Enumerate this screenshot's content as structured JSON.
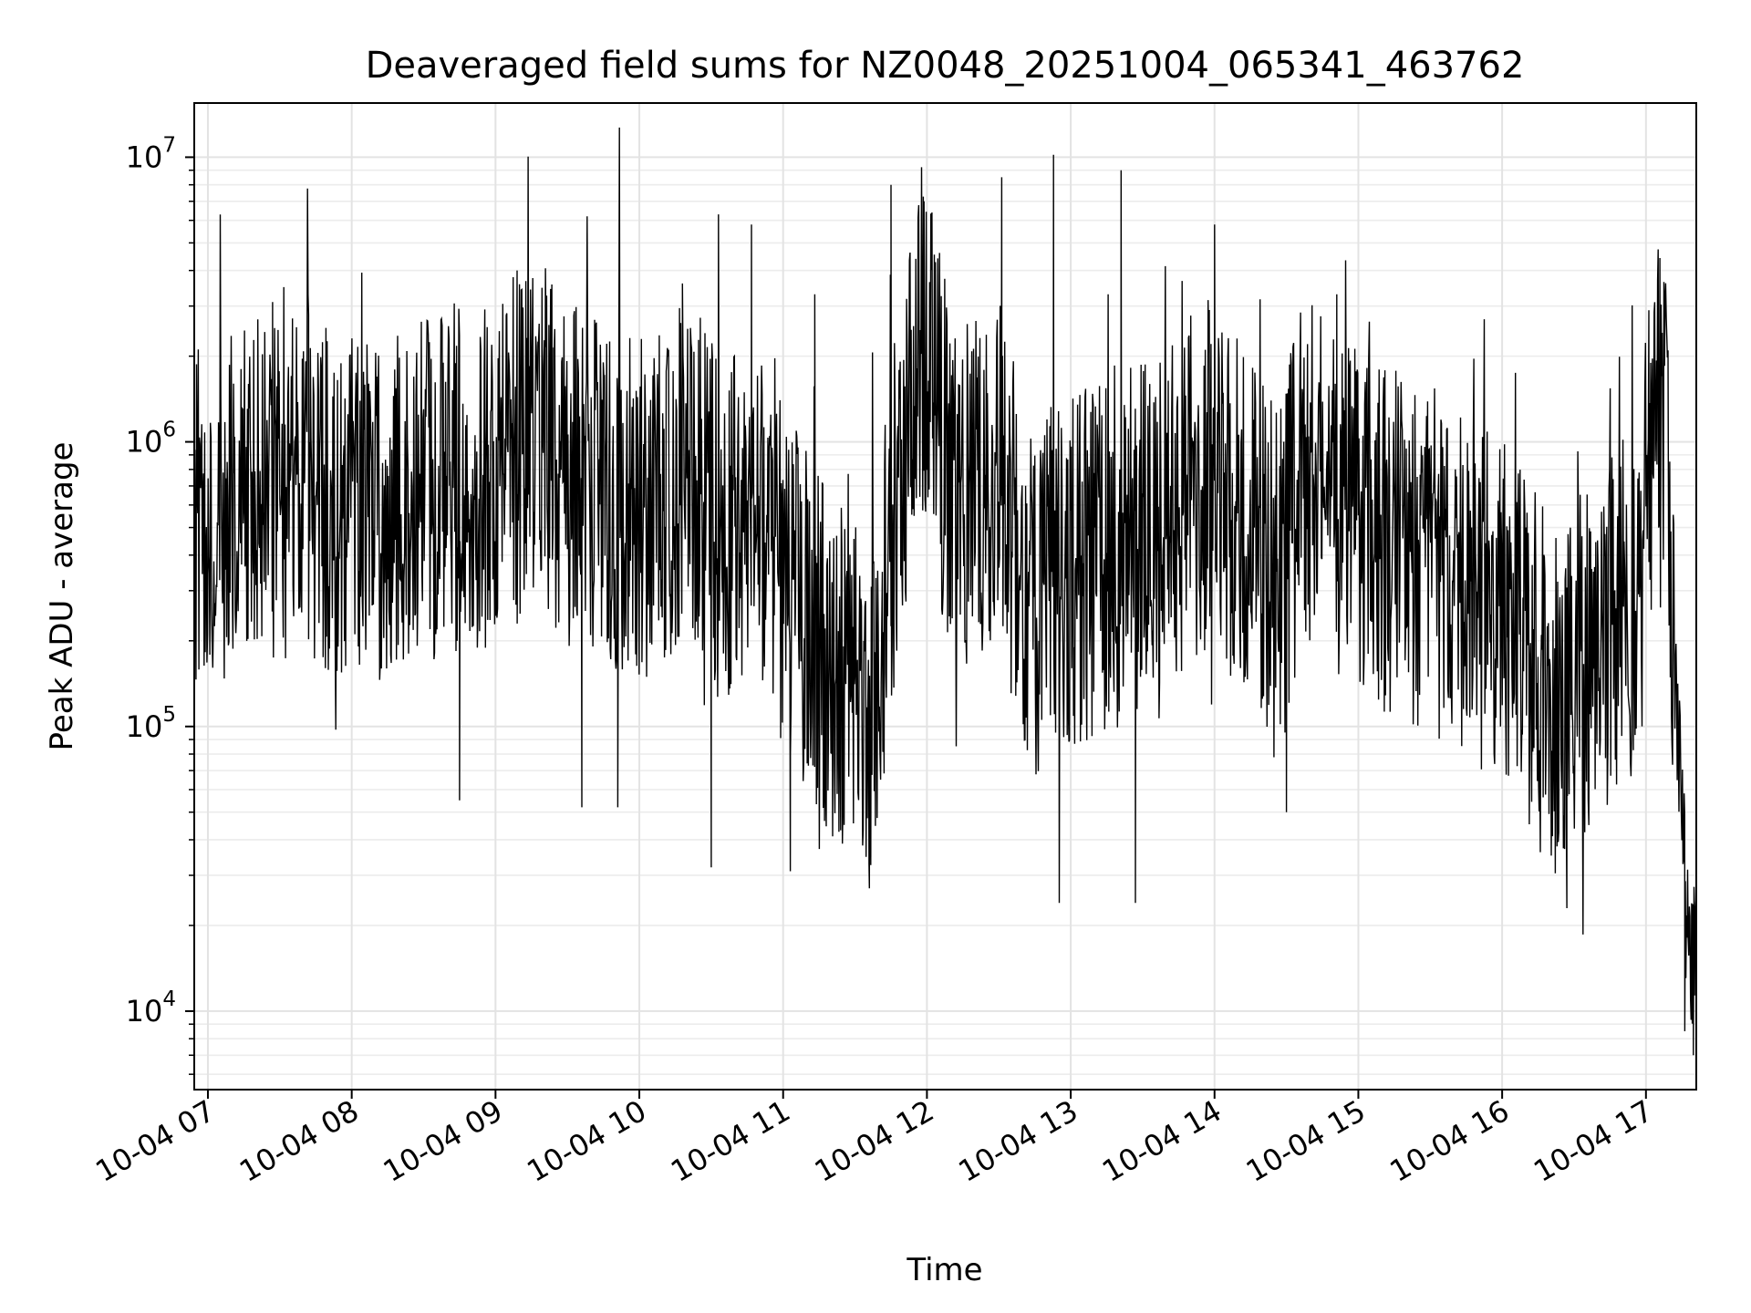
{
  "chart_data": {
    "type": "line",
    "title": "Deaveraged field sums for NZ0048_20251004_065341_463762",
    "xlabel": "Time",
    "ylabel": "Peak ADU - average",
    "yscale": "log",
    "ylim": [
      5300,
      15500000
    ],
    "xlim_hours": [
      6.905,
      17.35
    ],
    "grid": true,
    "x_ticks": [
      {
        "hour": 7,
        "label": "10-04 07"
      },
      {
        "hour": 8,
        "label": "10-04 08"
      },
      {
        "hour": 9,
        "label": "10-04 09"
      },
      {
        "hour": 10,
        "label": "10-04 10"
      },
      {
        "hour": 11,
        "label": "10-04 11"
      },
      {
        "hour": 12,
        "label": "10-04 12"
      },
      {
        "hour": 13,
        "label": "10-04 13"
      },
      {
        "hour": 14,
        "label": "10-04 14"
      },
      {
        "hour": 15,
        "label": "10-04 15"
      },
      {
        "hour": 16,
        "label": "10-04 16"
      },
      {
        "hour": 17,
        "label": "10-04 17"
      }
    ],
    "y_ticks": [
      {
        "value": 10000,
        "base": "10",
        "exp": "4"
      },
      {
        "value": 100000,
        "base": "10",
        "exp": "5"
      },
      {
        "value": 1000000,
        "base": "10",
        "exp": "6"
      },
      {
        "value": 10000000,
        "base": "10",
        "exp": "7"
      }
    ],
    "series": [
      {
        "name": "field sums",
        "color": "#000000",
        "envelope": [
          {
            "hour": 6.9,
            "center": 550000
          },
          {
            "hour": 7.5,
            "center": 700000
          },
          {
            "hour": 8.0,
            "center": 600000
          },
          {
            "hour": 8.5,
            "center": 700000
          },
          {
            "hour": 9.0,
            "center": 800000
          },
          {
            "hour": 9.3,
            "center": 1100000
          },
          {
            "hour": 9.6,
            "center": 700000
          },
          {
            "hour": 10.0,
            "center": 600000
          },
          {
            "hour": 10.4,
            "center": 800000
          },
          {
            "hour": 10.6,
            "center": 450000
          },
          {
            "hour": 10.8,
            "center": 700000
          },
          {
            "hour": 11.0,
            "center": 350000
          },
          {
            "hour": 11.3,
            "center": 180000
          },
          {
            "hour": 11.6,
            "center": 100000
          },
          {
            "hour": 11.8,
            "center": 700000
          },
          {
            "hour": 11.95,
            "center": 2500000
          },
          {
            "hour": 12.2,
            "center": 600000
          },
          {
            "hour": 12.5,
            "center": 900000
          },
          {
            "hour": 12.7,
            "center": 250000
          },
          {
            "hour": 12.95,
            "center": 350000
          },
          {
            "hour": 13.3,
            "center": 400000
          },
          {
            "hour": 13.6,
            "center": 550000
          },
          {
            "hour": 14.0,
            "center": 800000
          },
          {
            "hour": 14.45,
            "center": 300000
          },
          {
            "hour": 14.6,
            "center": 800000
          },
          {
            "hour": 15.0,
            "center": 500000
          },
          {
            "hour": 15.5,
            "center": 400000
          },
          {
            "hour": 16.0,
            "center": 250000
          },
          {
            "hour": 16.4,
            "center": 120000
          },
          {
            "hour": 16.7,
            "center": 200000
          },
          {
            "hour": 16.95,
            "center": 300000
          },
          {
            "hour": 17.05,
            "center": 1300000
          },
          {
            "hour": 17.15,
            "center": 900000
          },
          {
            "hour": 17.22,
            "center": 90000
          },
          {
            "hour": 17.3,
            "center": 15000
          },
          {
            "hour": 17.35,
            "center": 20000
          }
        ],
        "spikes": [
          {
            "hour": 7.45,
            "value": 3100000
          },
          {
            "hour": 7.7,
            "value": 2800000
          },
          {
            "hour": 8.0,
            "value": 1800000
          },
          {
            "hour": 8.75,
            "value": 55000
          },
          {
            "hour": 9.15,
            "value": 4000000
          },
          {
            "hour": 9.6,
            "value": 52000
          },
          {
            "hour": 9.85,
            "value": 52000
          },
          {
            "hour": 10.3,
            "value": 3600000
          },
          {
            "hour": 10.5,
            "value": 32000
          },
          {
            "hour": 10.55,
            "value": 6300000
          },
          {
            "hour": 10.78,
            "value": 5800000
          },
          {
            "hour": 11.05,
            "value": 31000
          },
          {
            "hour": 11.22,
            "value": 3300000
          },
          {
            "hour": 11.6,
            "value": 27000
          },
          {
            "hour": 11.75,
            "value": 8000000
          },
          {
            "hour": 11.98,
            "value": 7000000
          },
          {
            "hour": 12.52,
            "value": 8500000
          },
          {
            "hour": 12.88,
            "value": 10200000
          },
          {
            "hour": 12.92,
            "value": 24000
          },
          {
            "hour": 13.35,
            "value": 9000000
          },
          {
            "hour": 13.45,
            "value": 24000
          },
          {
            "hour": 14.0,
            "value": 5800000
          },
          {
            "hour": 14.5,
            "value": 50000
          },
          {
            "hour": 14.85,
            "value": 3300000
          },
          {
            "hour": 16.45,
            "value": 23000
          },
          {
            "hour": 17.02,
            "value": 2900000
          },
          {
            "hour": 17.27,
            "value": 8500
          },
          {
            "hour": 17.33,
            "value": 7000
          }
        ]
      }
    ]
  }
}
